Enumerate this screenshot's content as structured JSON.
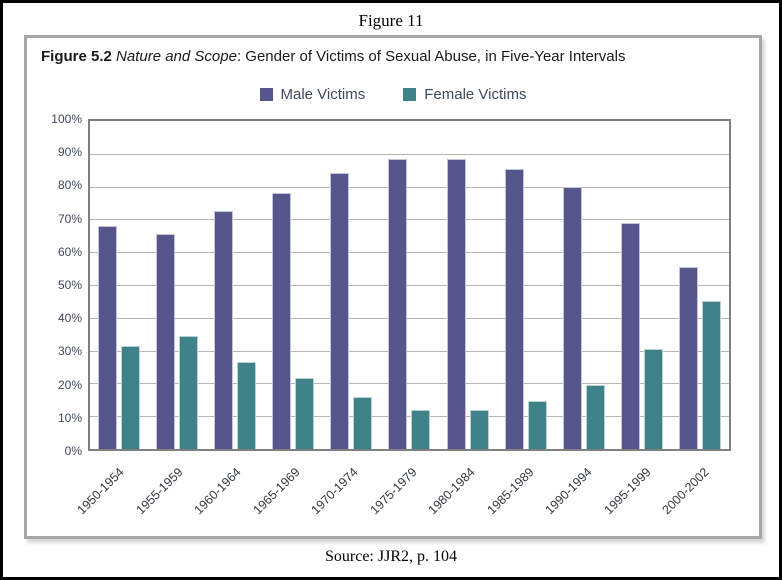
{
  "page": {
    "outer_title": "Figure 11",
    "source": "Source: JJR2, p. 104"
  },
  "chart": {
    "title": {
      "bold": "Figure 5.2",
      "italic": " Nature and Scope",
      "rest": ": Gender of Victims of Sexual Abuse, in Five-Year Intervals"
    }
  },
  "chart_data": {
    "type": "bar",
    "title": "Figure 5.2 Nature and Scope: Gender of Victims of Sexual Abuse, in Five-Year Intervals",
    "categories": [
      "1950-1954",
      "1955-1959",
      "1960-1964",
      "1965-1969",
      "1970-1974",
      "1975-1979",
      "1980-1984",
      "1985-1989",
      "1990-1994",
      "1995-1999",
      "2000-2002"
    ],
    "series": [
      {
        "name": "Male Victims",
        "color": "#54568C",
        "values": [
          68,
          65.5,
          72.5,
          78,
          84,
          88.5,
          88.5,
          85.5,
          80,
          69,
          55.5
        ]
      },
      {
        "name": "Female Victims",
        "color": "#3F828A",
        "values": [
          31.5,
          34.5,
          26.5,
          21.5,
          16,
          12,
          12,
          14.5,
          19.5,
          30.5,
          45
        ]
      }
    ],
    "xlabel": "",
    "ylabel": "",
    "ylim": [
      0,
      100
    ],
    "y_tick_step": 10,
    "y_tick_labels": [
      "100%",
      "90%",
      "80%",
      "70%",
      "60%",
      "50%",
      "40%",
      "30%",
      "20%",
      "10%",
      "0%"
    ],
    "grid": true,
    "legend_position": "top-center"
  }
}
